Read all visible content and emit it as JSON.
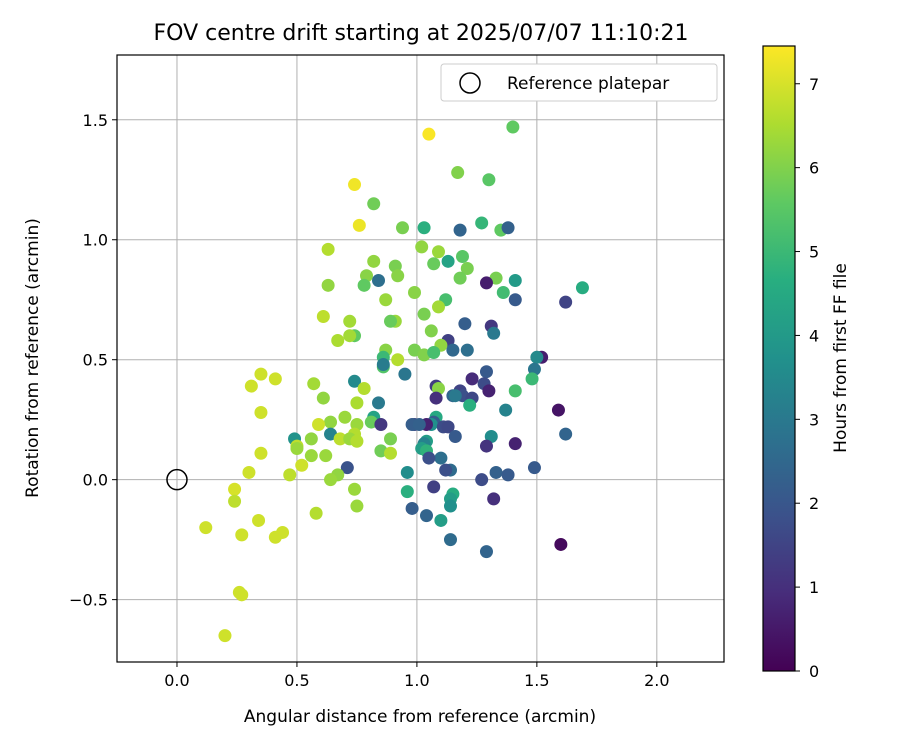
{
  "chart_data": {
    "type": "scatter",
    "title": "FOV centre drift starting at 2025/07/07 11:10:21",
    "xlabel": "Angular distance from reference (arcmin)",
    "ylabel": "Rotation from reference (arcmin)",
    "xlim": [
      -0.25,
      2.28
    ],
    "ylim": [
      -0.76,
      1.77
    ],
    "xticks": [
      0.0,
      0.5,
      1.0,
      1.5,
      2.0
    ],
    "yticks": [
      -0.5,
      0.0,
      0.5,
      1.0,
      1.5
    ],
    "xtick_labels": [
      "0.0",
      "0.5",
      "1.0",
      "1.5",
      "2.0"
    ],
    "ytick_labels": [
      "−0.5",
      "0.0",
      "0.5",
      "1.0",
      "1.5"
    ],
    "grid": true,
    "legend": {
      "placement": "top-right",
      "entries": [
        {
          "label": "Reference platepar",
          "marker": "open-circle"
        }
      ]
    },
    "reference_point": [
      0,
      0
    ],
    "colorbar": {
      "label": "Hours from first FF file",
      "colormap": "viridis",
      "range": [
        0,
        7.45
      ],
      "ticks": [
        0,
        1,
        2,
        3,
        4,
        5,
        6,
        7
      ],
      "tick_labels": [
        "0",
        "1",
        "2",
        "3",
        "4",
        "5",
        "6",
        "7"
      ]
    },
    "series": [
      {
        "points": [
          [
            1.05,
            1.44,
            7.4
          ],
          [
            0.74,
            1.23,
            7.3
          ],
          [
            0.76,
            1.06,
            7.25
          ],
          [
            1.4,
            1.47,
            5.6
          ],
          [
            1.17,
            1.28,
            6.0
          ],
          [
            1.3,
            1.25,
            5.5
          ],
          [
            0.82,
            1.15,
            5.8
          ],
          [
            0.94,
            1.05,
            5.9
          ],
          [
            1.03,
            1.05,
            4.7
          ],
          [
            1.27,
            1.07,
            4.9
          ],
          [
            1.35,
            1.04,
            5.6
          ],
          [
            1.18,
            1.04,
            2.4
          ],
          [
            1.38,
            1.05,
            2.3
          ],
          [
            0.63,
            0.96,
            6.6
          ],
          [
            1.02,
            0.97,
            6.2
          ],
          [
            1.09,
            0.95,
            6.3
          ],
          [
            1.19,
            0.93,
            5.5
          ],
          [
            1.21,
            0.88,
            5.9
          ],
          [
            1.07,
            0.9,
            5.7
          ],
          [
            0.82,
            0.91,
            6.2
          ],
          [
            0.91,
            0.89,
            5.9
          ],
          [
            0.92,
            0.85,
            6.1
          ],
          [
            0.79,
            0.85,
            6.1
          ],
          [
            1.13,
            0.91,
            4.3
          ],
          [
            1.18,
            0.84,
            5.8
          ],
          [
            1.33,
            0.84,
            5.9
          ],
          [
            1.41,
            0.83,
            4.0
          ],
          [
            0.84,
            0.83,
            2.7
          ],
          [
            1.29,
            0.82,
            0.6
          ],
          [
            0.63,
            0.81,
            6.2
          ],
          [
            0.78,
            0.81,
            5.6
          ],
          [
            1.69,
            0.8,
            4.6
          ],
          [
            1.36,
            0.78,
            5.1
          ],
          [
            0.99,
            0.78,
            6.1
          ],
          [
            1.41,
            0.75,
            2.1
          ],
          [
            1.62,
            0.74,
            1.5
          ],
          [
            1.12,
            0.75,
            5.2
          ],
          [
            0.87,
            0.75,
            6.3
          ],
          [
            1.09,
            0.72,
            6.4
          ],
          [
            1.03,
            0.69,
            5.9
          ],
          [
            0.61,
            0.68,
            6.7
          ],
          [
            0.72,
            0.66,
            6.4
          ],
          [
            0.91,
            0.66,
            6.3
          ],
          [
            0.89,
            0.66,
            5.7
          ],
          [
            1.2,
            0.65,
            2.2
          ],
          [
            1.31,
            0.64,
            1.2
          ],
          [
            1.06,
            0.62,
            6.0
          ],
          [
            1.32,
            0.61,
            3.0
          ],
          [
            0.74,
            0.6,
            5.6
          ],
          [
            0.72,
            0.6,
            6.4
          ],
          [
            0.67,
            0.58,
            6.5
          ],
          [
            1.13,
            0.58,
            1.4
          ],
          [
            1.1,
            0.56,
            6.2
          ],
          [
            0.87,
            0.54,
            6.1
          ],
          [
            0.99,
            0.54,
            5.9
          ],
          [
            1.15,
            0.54,
            2.5
          ],
          [
            1.21,
            0.54,
            2.7
          ],
          [
            0.86,
            0.51,
            5.0
          ],
          [
            0.92,
            0.5,
            6.6
          ],
          [
            1.52,
            0.51,
            0.6
          ],
          [
            1.5,
            0.51,
            3.5
          ],
          [
            1.03,
            0.52,
            6.0
          ],
          [
            1.07,
            0.53,
            5.2
          ],
          [
            0.86,
            0.47,
            5.4
          ],
          [
            0.86,
            0.48,
            3.1
          ],
          [
            1.49,
            0.46,
            2.9
          ],
          [
            1.29,
            0.45,
            2.1
          ],
          [
            0.95,
            0.44,
            2.9
          ],
          [
            1.23,
            0.42,
            0.9
          ],
          [
            1.48,
            0.42,
            5.0
          ],
          [
            0.57,
            0.4,
            6.4
          ],
          [
            0.74,
            0.41,
            3.5
          ],
          [
            0.35,
            0.44,
            6.9
          ],
          [
            0.41,
            0.42,
            6.9
          ],
          [
            1.08,
            0.39,
            1.3
          ],
          [
            1.09,
            0.38,
            6.1
          ],
          [
            0.31,
            0.39,
            6.9
          ],
          [
            0.78,
            0.38,
            6.6
          ],
          [
            1.28,
            0.4,
            1.7
          ],
          [
            1.3,
            0.37,
            0.7
          ],
          [
            1.18,
            0.37,
            1.5
          ],
          [
            1.41,
            0.37,
            5.2
          ],
          [
            1.15,
            0.35,
            2.4
          ],
          [
            1.19,
            0.35,
            1.8
          ],
          [
            1.16,
            0.35,
            3.0
          ],
          [
            1.23,
            0.34,
            1.6
          ],
          [
            1.08,
            0.34,
            1.0
          ],
          [
            0.61,
            0.34,
            6.2
          ],
          [
            0.75,
            0.32,
            6.5
          ],
          [
            0.84,
            0.32,
            3.0
          ],
          [
            1.22,
            0.31,
            4.7
          ],
          [
            1.37,
            0.29,
            3.3
          ],
          [
            1.59,
            0.29,
            0.4
          ],
          [
            0.35,
            0.28,
            6.9
          ],
          [
            0.7,
            0.26,
            6.3
          ],
          [
            0.82,
            0.26,
            4.3
          ],
          [
            0.81,
            0.24,
            5.7
          ],
          [
            1.08,
            0.26,
            4.5
          ],
          [
            0.64,
            0.24,
            6.2
          ],
          [
            1.07,
            0.24,
            2.2
          ],
          [
            1.06,
            0.23,
            3.7
          ],
          [
            0.99,
            0.23,
            1.5
          ],
          [
            0.98,
            0.23,
            2.2
          ],
          [
            1.04,
            0.23,
            0.7
          ],
          [
            1.11,
            0.22,
            1.7
          ],
          [
            1.13,
            0.22,
            1.6
          ],
          [
            1.01,
            0.23,
            2.3
          ],
          [
            0.75,
            0.23,
            6.3
          ],
          [
            0.85,
            0.23,
            1.2
          ],
          [
            0.59,
            0.23,
            6.9
          ],
          [
            1.62,
            0.19,
            2.4
          ],
          [
            0.64,
            0.19,
            3.3
          ],
          [
            0.74,
            0.19,
            6.6
          ],
          [
            1.16,
            0.18,
            2.1
          ],
          [
            0.49,
            0.17,
            3.8
          ],
          [
            0.89,
            0.17,
            5.9
          ],
          [
            0.68,
            0.17,
            6.7
          ],
          [
            1.31,
            0.18,
            3.6
          ],
          [
            0.56,
            0.17,
            6.2
          ],
          [
            0.72,
            0.17,
            6.3
          ],
          [
            0.75,
            0.16,
            6.6
          ],
          [
            1.04,
            0.16,
            4.1
          ],
          [
            1.03,
            0.15,
            3.3
          ],
          [
            1.41,
            0.15,
            0.7
          ],
          [
            0.5,
            0.14,
            6.7
          ],
          [
            1.29,
            0.14,
            1.1
          ],
          [
            1.02,
            0.13,
            4.1
          ],
          [
            0.5,
            0.13,
            6.3
          ],
          [
            1.04,
            0.12,
            4.8
          ],
          [
            0.85,
            0.12,
            5.8
          ],
          [
            0.89,
            0.11,
            6.6
          ],
          [
            0.35,
            0.11,
            6.9
          ],
          [
            0.56,
            0.1,
            6.3
          ],
          [
            0.62,
            0.1,
            6.3
          ],
          [
            1.1,
            0.09,
            2.7
          ],
          [
            1.05,
            0.09,
            1.8
          ],
          [
            0.52,
            0.06,
            6.9
          ],
          [
            0.71,
            0.05,
            1.9
          ],
          [
            1.33,
            0.03,
            2.3
          ],
          [
            0.3,
            0.03,
            6.9
          ],
          [
            0.96,
            0.03,
            3.6
          ],
          [
            1.49,
            0.05,
            2.1
          ],
          [
            1.14,
            0.04,
            2.6
          ],
          [
            1.12,
            0.04,
            1.8
          ],
          [
            1.38,
            0.02,
            2.1
          ],
          [
            0.67,
            0.02,
            6.2
          ],
          [
            0.47,
            0.02,
            6.7
          ],
          [
            0.64,
            0.0,
            6.3
          ],
          [
            1.27,
            0.0,
            1.7
          ],
          [
            1.07,
            -0.03,
            1.4
          ],
          [
            0.24,
            -0.04,
            7.0
          ],
          [
            0.74,
            -0.04,
            6.3
          ],
          [
            0.96,
            -0.05,
            4.7
          ],
          [
            1.15,
            -0.06,
            4.6
          ],
          [
            1.32,
            -0.08,
            1.0
          ],
          [
            1.14,
            -0.08,
            4.1
          ],
          [
            0.24,
            -0.09,
            6.7
          ],
          [
            0.75,
            -0.11,
            6.3
          ],
          [
            0.98,
            -0.12,
            2.2
          ],
          [
            1.14,
            -0.11,
            3.7
          ],
          [
            1.04,
            -0.15,
            2.4
          ],
          [
            0.58,
            -0.14,
            6.6
          ],
          [
            1.1,
            -0.17,
            4.1
          ],
          [
            0.34,
            -0.17,
            6.9
          ],
          [
            0.12,
            -0.2,
            6.9
          ],
          [
            0.44,
            -0.22,
            6.9
          ],
          [
            0.27,
            -0.23,
            6.9
          ],
          [
            0.41,
            -0.24,
            6.9
          ],
          [
            1.14,
            -0.25,
            2.6
          ],
          [
            1.29,
            -0.3,
            2.4
          ],
          [
            1.6,
            -0.27,
            0.2
          ],
          [
            0.26,
            -0.47,
            6.9
          ],
          [
            0.27,
            -0.48,
            6.9
          ],
          [
            0.2,
            -0.65,
            6.9
          ]
        ]
      }
    ]
  }
}
